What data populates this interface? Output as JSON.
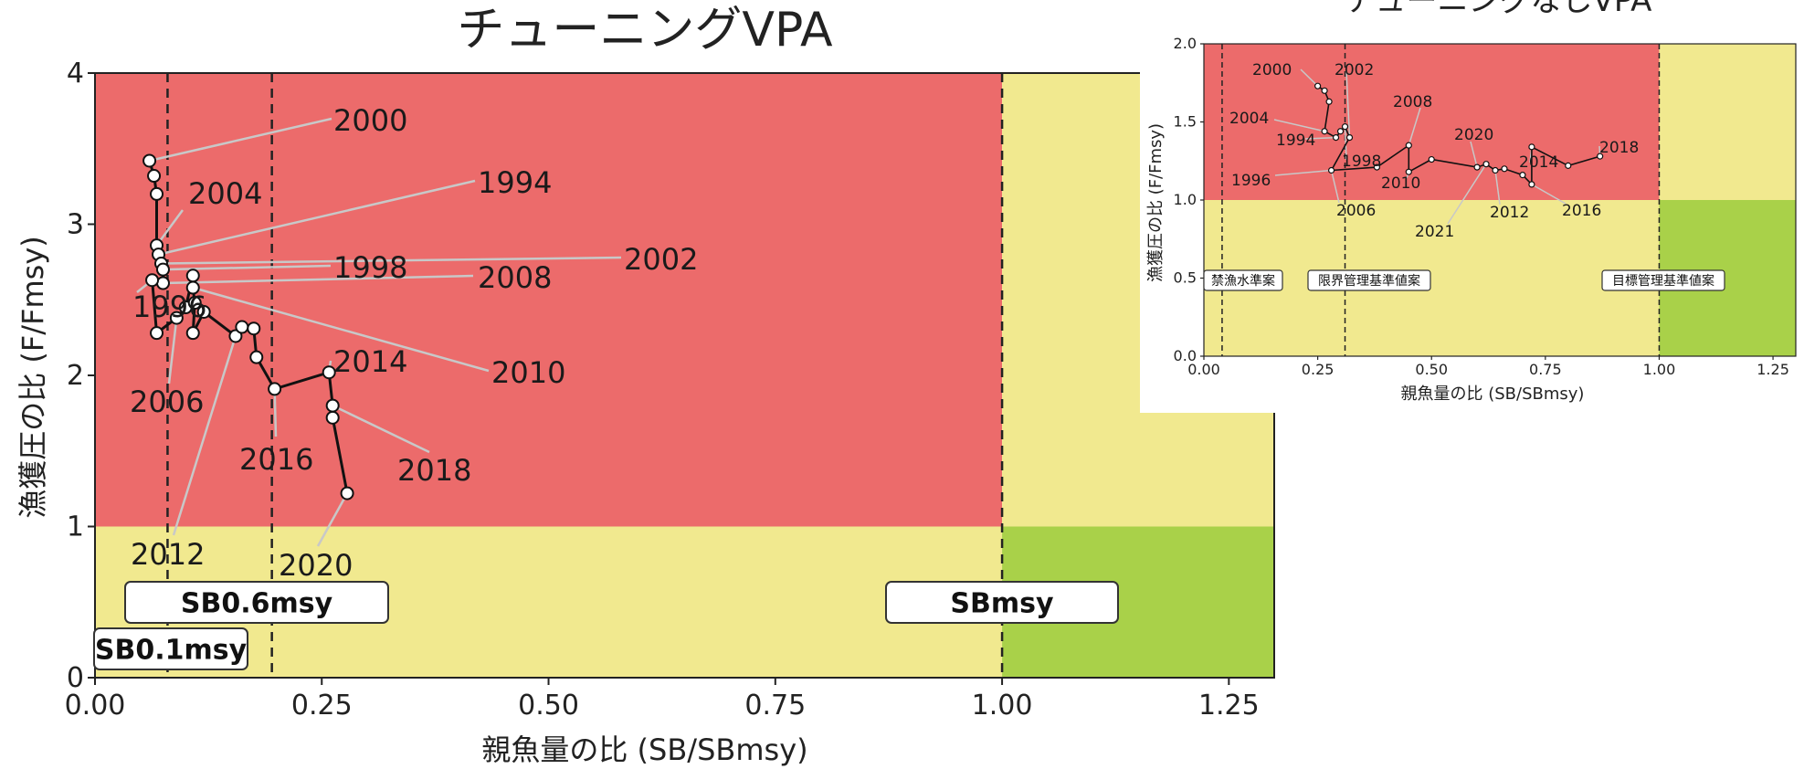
{
  "chart_data": [
    {
      "type": "scatter",
      "title": "チューニングVPA",
      "xlabel": "親魚量の比 (SB/SBmsy)",
      "ylabel": "漁獲圧の比 (F/Fmsy)",
      "xlim": [
        0,
        1.3
      ],
      "ylim": [
        0,
        4
      ],
      "x_ticks": [
        "0.00",
        "0.25",
        "0.50",
        "0.75",
        "1.00",
        "1.25"
      ],
      "y_ticks": [
        "0",
        "1",
        "2",
        "3",
        "4"
      ],
      "zone_colors": {
        "overfished_high_f": "#ec6b6b",
        "yellow": "#f1e98f",
        "green": "#a9d149"
      },
      "reference_lines": [
        {
          "x": 0.08,
          "label": "SB0.1msy"
        },
        {
          "x": 0.195,
          "label": "SB0.6msy"
        },
        {
          "x": 1.0,
          "label": "SBmsy"
        }
      ],
      "points": [
        {
          "x": 0.06,
          "y": 3.42
        },
        {
          "x": 0.065,
          "y": 3.32
        },
        {
          "x": 0.068,
          "y": 3.2
        },
        {
          "x": 0.068,
          "y": 2.86
        },
        {
          "x": 0.07,
          "y": 2.8
        },
        {
          "x": 0.073,
          "y": 2.74
        },
        {
          "x": 0.075,
          "y": 2.7
        },
        {
          "x": 0.075,
          "y": 2.61
        },
        {
          "x": 0.063,
          "y": 2.63
        },
        {
          "x": 0.068,
          "y": 2.28
        },
        {
          "x": 0.09,
          "y": 2.38
        },
        {
          "x": 0.1,
          "y": 2.45
        },
        {
          "x": 0.108,
          "y": 2.66
        },
        {
          "x": 0.108,
          "y": 2.58
        },
        {
          "x": 0.11,
          "y": 2.48
        },
        {
          "x": 0.108,
          "y": 2.28
        },
        {
          "x": 0.12,
          "y": 2.42
        },
        {
          "x": 0.155,
          "y": 2.26
        },
        {
          "x": 0.162,
          "y": 2.32
        },
        {
          "x": 0.175,
          "y": 2.31
        },
        {
          "x": 0.178,
          "y": 2.12
        },
        {
          "x": 0.198,
          "y": 1.91
        },
        {
          "x": 0.258,
          "y": 2.02
        },
        {
          "x": 0.262,
          "y": 1.8
        },
        {
          "x": 0.262,
          "y": 1.72
        },
        {
          "x": 0.278,
          "y": 1.22
        }
      ],
      "year_labels": [
        "2000",
        "1994",
        "2004",
        "1998",
        "2002",
        "2008",
        "1996",
        "2014",
        "2010",
        "2006",
        "2016",
        "2018",
        "2012",
        "2020"
      ]
    },
    {
      "type": "scatter",
      "title": "チューニングなしVPA",
      "xlabel": "親魚量の比 (SB/SBmsy)",
      "ylabel": "漁獲圧の比 (F/Fmsy)",
      "xlim": [
        0,
        1.3
      ],
      "ylim": [
        0,
        2.0
      ],
      "x_ticks": [
        "0.00",
        "0.25",
        "0.50",
        "0.75",
        "1.00",
        "1.25"
      ],
      "y_ticks": [
        "0.0",
        "0.5",
        "1.0",
        "1.5",
        "2.0"
      ],
      "reference_lines": [
        {
          "x": 0.04,
          "label": "禁漁水準案"
        },
        {
          "x": 0.31,
          "label": "限界管理基準値案"
        },
        {
          "x": 1.0,
          "label": "目標管理基準値案"
        }
      ],
      "points": [
        {
          "x": 0.25,
          "y": 1.73
        },
        {
          "x": 0.265,
          "y": 1.7
        },
        {
          "x": 0.275,
          "y": 1.63
        },
        {
          "x": 0.265,
          "y": 1.44
        },
        {
          "x": 0.29,
          "y": 1.4
        },
        {
          "x": 0.3,
          "y": 1.44
        },
        {
          "x": 0.31,
          "y": 1.47
        },
        {
          "x": 0.32,
          "y": 1.4
        },
        {
          "x": 0.28,
          "y": 1.19
        },
        {
          "x": 0.38,
          "y": 1.21
        },
        {
          "x": 0.45,
          "y": 1.35
        },
        {
          "x": 0.45,
          "y": 1.18
        },
        {
          "x": 0.5,
          "y": 1.26
        },
        {
          "x": 0.6,
          "y": 1.21
        },
        {
          "x": 0.62,
          "y": 1.23
        },
        {
          "x": 0.64,
          "y": 1.19
        },
        {
          "x": 0.66,
          "y": 1.2
        },
        {
          "x": 0.7,
          "y": 1.16
        },
        {
          "x": 0.72,
          "y": 1.1
        },
        {
          "x": 0.72,
          "y": 1.34
        },
        {
          "x": 0.8,
          "y": 1.22
        },
        {
          "x": 0.87,
          "y": 1.28
        }
      ],
      "year_labels": [
        "2000",
        "2002",
        "2004",
        "1994",
        "2008",
        "1998",
        "1996",
        "2020",
        "2014",
        "2018",
        "2010",
        "2006",
        "2012",
        "2016",
        "2021"
      ]
    }
  ]
}
